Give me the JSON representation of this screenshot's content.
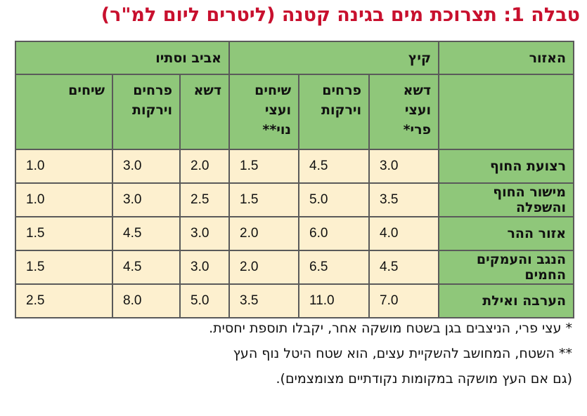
{
  "title": "טבלה 1: תצרוכת מים בגינה קטנה (ליטרים ליום למ\"ר)",
  "table": {
    "region_header": "האזור",
    "groups": [
      "קיץ",
      "אביב וסתיו"
    ],
    "subheaders": {
      "summer": [
        "דשא ועצי פרי*",
        "פרחים וירקות",
        "שיחים ועצי נוי**"
      ],
      "spring_autumn": [
        "דשא",
        "פרחים וירקות",
        "שיחים"
      ]
    },
    "rows": [
      {
        "region": "רצועת החוף",
        "values": [
          "3.0",
          "4.5",
          "1.5",
          "2.0",
          "3.0",
          "1.0"
        ]
      },
      {
        "region": "מישור החוף והשפלה",
        "values": [
          "3.5",
          "5.0",
          "1.5",
          "2.5",
          "3.0",
          "1.0"
        ]
      },
      {
        "region": "אזור ההר",
        "values": [
          "4.0",
          "6.0",
          "2.0",
          "3.0",
          "4.5",
          "1.5"
        ]
      },
      {
        "region": "הנגב והעמקים החמים",
        "values": [
          "4.5",
          "6.5",
          "2.0",
          "3.0",
          "4.5",
          "1.5"
        ]
      },
      {
        "region": "הערבה ואילת",
        "values": [
          "7.0",
          "11.0",
          "3.5",
          "5.0",
          "8.0",
          "2.5"
        ]
      }
    ]
  },
  "footnotes": [
    "* עצי פרי, הניצבים בגן בשטח מושקה אחר, יקבלו תוספת יחסית.",
    "** השטח, המחושב להשקיית עצים, הוא שטח היטל נוף העץ",
    "(גם אם העץ מושקה במקומות נקודתיים מצומצמים)."
  ],
  "colors": {
    "title": "#c8102e",
    "header_bg": "#8fc77a",
    "cell_bg": "#fdf0cf",
    "border": "#5a5a5a"
  }
}
